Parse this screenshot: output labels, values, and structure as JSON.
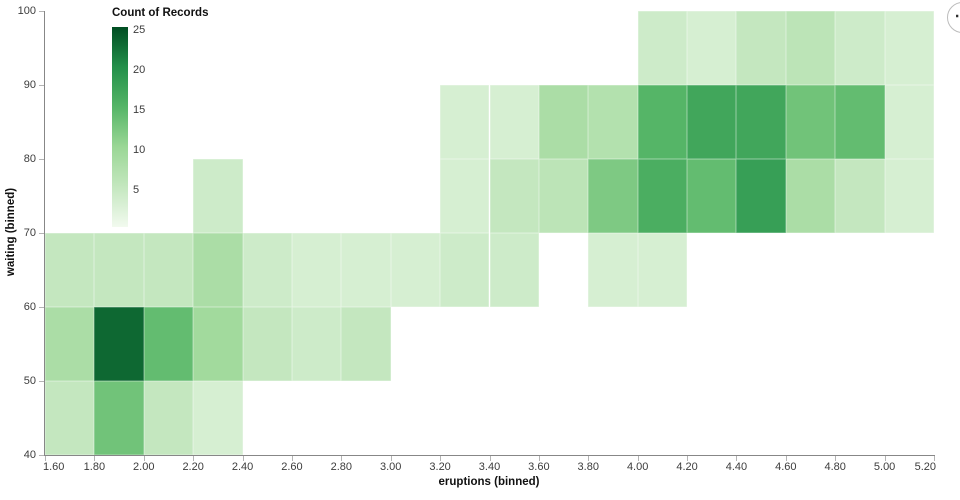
{
  "ui": {
    "actions_button_glyph": "⋯"
  },
  "chart_data": {
    "type": "heatmap",
    "title": "",
    "xlabel": "eruptions (binned)",
    "ylabel": "waiting (binned)",
    "x_bin_start": 1.6,
    "x_bin_step": 0.2,
    "x_range": [
      1.6,
      5.2
    ],
    "y_bin_start": 40,
    "y_bin_step": 10,
    "y_range": [
      40,
      100
    ],
    "x_ticks": [
      "1.60",
      "1.80",
      "2.00",
      "2.20",
      "2.40",
      "2.60",
      "2.80",
      "3.00",
      "3.20",
      "3.40",
      "3.60",
      "3.80",
      "4.00",
      "4.20",
      "4.40",
      "4.60",
      "4.80",
      "5.00",
      "5.20"
    ],
    "y_ticks": [
      "40",
      "50",
      "60",
      "70",
      "80",
      "90",
      "100"
    ],
    "legend": {
      "title": "Count of Records",
      "ticks": [
        5,
        10,
        15,
        20,
        25
      ],
      "min": 0,
      "max": 25,
      "position": "top-left-inside"
    },
    "color_scale": {
      "scheme": "greens",
      "stops": [
        [
          0,
          "#f2faef"
        ],
        [
          5,
          "#c4e7bf"
        ],
        [
          10,
          "#9ad795"
        ],
        [
          15,
          "#55b567"
        ],
        [
          20,
          "#23904a"
        ],
        [
          25,
          "#004d22"
        ]
      ]
    },
    "grid": false,
    "cells": [
      {
        "x": 1.6,
        "y": 40,
        "count": 5
      },
      {
        "x": 1.8,
        "y": 40,
        "count": 13
      },
      {
        "x": 2.0,
        "y": 40,
        "count": 5
      },
      {
        "x": 2.2,
        "y": 40,
        "count": 3
      },
      {
        "x": 1.6,
        "y": 50,
        "count": 8
      },
      {
        "x": 1.8,
        "y": 50,
        "count": 23
      },
      {
        "x": 2.0,
        "y": 50,
        "count": 14
      },
      {
        "x": 2.2,
        "y": 50,
        "count": 9
      },
      {
        "x": 2.4,
        "y": 50,
        "count": 5
      },
      {
        "x": 2.6,
        "y": 50,
        "count": 4
      },
      {
        "x": 2.8,
        "y": 50,
        "count": 5
      },
      {
        "x": 1.6,
        "y": 60,
        "count": 5
      },
      {
        "x": 1.8,
        "y": 60,
        "count": 5
      },
      {
        "x": 2.0,
        "y": 60,
        "count": 5
      },
      {
        "x": 2.2,
        "y": 60,
        "count": 8
      },
      {
        "x": 2.4,
        "y": 60,
        "count": 4
      },
      {
        "x": 2.6,
        "y": 60,
        "count": 3
      },
      {
        "x": 2.8,
        "y": 60,
        "count": 3
      },
      {
        "x": 3.0,
        "y": 60,
        "count": 3
      },
      {
        "x": 3.2,
        "y": 60,
        "count": 4
      },
      {
        "x": 3.4,
        "y": 60,
        "count": 4
      },
      {
        "x": 3.8,
        "y": 60,
        "count": 3
      },
      {
        "x": 4.0,
        "y": 60,
        "count": 3
      },
      {
        "x": 2.2,
        "y": 70,
        "count": 4
      },
      {
        "x": 3.2,
        "y": 70,
        "count": 3
      },
      {
        "x": 3.4,
        "y": 70,
        "count": 5
      },
      {
        "x": 3.6,
        "y": 70,
        "count": 6
      },
      {
        "x": 3.8,
        "y": 70,
        "count": 12
      },
      {
        "x": 4.0,
        "y": 70,
        "count": 16
      },
      {
        "x": 4.2,
        "y": 70,
        "count": 14
      },
      {
        "x": 4.4,
        "y": 70,
        "count": 18
      },
      {
        "x": 4.6,
        "y": 70,
        "count": 8
      },
      {
        "x": 4.8,
        "y": 70,
        "count": 5
      },
      {
        "x": 5.0,
        "y": 70,
        "count": 3
      },
      {
        "x": 3.2,
        "y": 80,
        "count": 3
      },
      {
        "x": 3.4,
        "y": 80,
        "count": 3
      },
      {
        "x": 3.6,
        "y": 80,
        "count": 8
      },
      {
        "x": 3.8,
        "y": 80,
        "count": 7
      },
      {
        "x": 4.0,
        "y": 80,
        "count": 15
      },
      {
        "x": 4.2,
        "y": 80,
        "count": 17
      },
      {
        "x": 4.4,
        "y": 80,
        "count": 17
      },
      {
        "x": 4.6,
        "y": 80,
        "count": 13
      },
      {
        "x": 4.8,
        "y": 80,
        "count": 14
      },
      {
        "x": 5.0,
        "y": 80,
        "count": 3
      },
      {
        "x": 4.0,
        "y": 90,
        "count": 4
      },
      {
        "x": 4.2,
        "y": 90,
        "count": 3
      },
      {
        "x": 4.4,
        "y": 90,
        "count": 5
      },
      {
        "x": 4.6,
        "y": 90,
        "count": 6
      },
      {
        "x": 4.8,
        "y": 90,
        "count": 4
      },
      {
        "x": 5.0,
        "y": 90,
        "count": 3
      }
    ]
  }
}
